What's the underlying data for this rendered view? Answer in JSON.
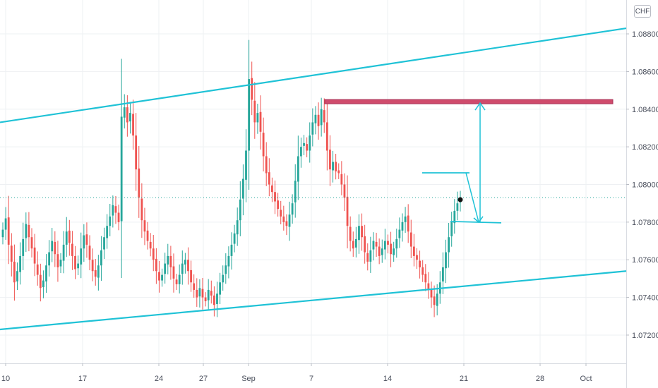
{
  "currency_label": "CHF",
  "colors": {
    "up": "#26a69a",
    "down": "#ef5350",
    "channel": "#1fc2d6",
    "resistance": "#cf4a6b",
    "marker": "#1fc2d6",
    "grid": "#eef0f3",
    "axis_text": "#4a4f5c",
    "last_price_line": "#26a69a"
  },
  "chart_data": {
    "type": "candlestick",
    "symbol_currency": "CHF",
    "x_tick_labels": [
      "10",
      "17",
      "24",
      "27",
      "Sep",
      "7",
      "14",
      "21",
      "28",
      "Oct"
    ],
    "y_tick_labels": [
      "1.08800",
      "1.08600",
      "1.08400",
      "1.08200",
      "1.08000",
      "1.07800",
      "1.07600",
      "1.07400",
      "1.07200"
    ],
    "ylim": [
      1.0705,
      1.0898
    ],
    "last_price": 1.0793,
    "closes": [
      1.0776,
      1.0782,
      1.0768,
      1.0759,
      1.0748,
      1.0754,
      1.0762,
      1.0771,
      1.0779,
      1.0772,
      1.0766,
      1.0758,
      1.0752,
      1.0745,
      1.0749,
      1.0757,
      1.0764,
      1.077,
      1.0763,
      1.0756,
      1.076,
      1.0768,
      1.0775,
      1.0769,
      1.0762,
      1.0755,
      1.0758,
      1.0766,
      1.0773,
      1.0768,
      1.076,
      1.0754,
      1.0751,
      1.0757,
      1.0765,
      1.0772,
      1.0778,
      1.0783,
      1.0789,
      1.0785,
      1.078,
      1.0836,
      1.0841,
      1.0833,
      1.0838,
      1.0826,
      1.0808,
      1.0793,
      1.0781,
      1.0775,
      1.077,
      1.0766,
      1.076,
      1.0754,
      1.0749,
      1.0752,
      1.0758,
      1.0762,
      1.0756,
      1.075,
      1.0747,
      1.0752,
      1.0758,
      1.076,
      1.0754,
      1.0748,
      1.0744,
      1.074,
      1.0745,
      1.074,
      1.0738,
      1.0744,
      1.0741,
      1.0736,
      1.0742,
      1.0748,
      1.0752,
      1.0757,
      1.0762,
      1.0768,
      1.0774,
      1.0781,
      1.0792,
      1.0803,
      1.0818,
      1.0856,
      1.0845,
      1.0833,
      1.0838,
      1.0828,
      1.0815,
      1.0806,
      1.08,
      1.0796,
      1.0791,
      1.0787,
      1.0783,
      1.078,
      1.0778,
      1.0784,
      1.079,
      1.0802,
      1.0815,
      1.082,
      1.0822,
      1.0818,
      1.0826,
      1.0833,
      1.0837,
      1.0831,
      1.084,
      1.0833,
      1.0818,
      1.0808,
      1.0812,
      1.0807,
      1.0806,
      1.08,
      1.0793,
      1.0778,
      1.077,
      1.0766,
      1.0771,
      1.0778,
      1.0772,
      1.0764,
      1.0759,
      1.0765,
      1.077,
      1.0767,
      1.0762,
      1.0766,
      1.077,
      1.0768,
      1.0763,
      1.0766,
      1.0771,
      1.0776,
      1.078,
      1.0783,
      1.0775,
      1.0767,
      1.0762,
      1.076,
      1.0756,
      1.0752,
      1.0748,
      1.0744,
      1.074,
      1.0736,
      1.0742,
      1.0748,
      1.0756,
      1.0764,
      1.0772,
      1.078,
      1.0786,
      1.079,
      1.0793
    ],
    "resistance_level": 1.0844,
    "channel_upper": [
      [
        0,
        1.0833
      ],
      [
        1,
        1.0883
      ]
    ],
    "channel_lower": [
      [
        0,
        1.0723
      ],
      [
        1,
        1.0754
      ]
    ],
    "arrow_target": 1.0844,
    "arrow_start": 1.078
  }
}
